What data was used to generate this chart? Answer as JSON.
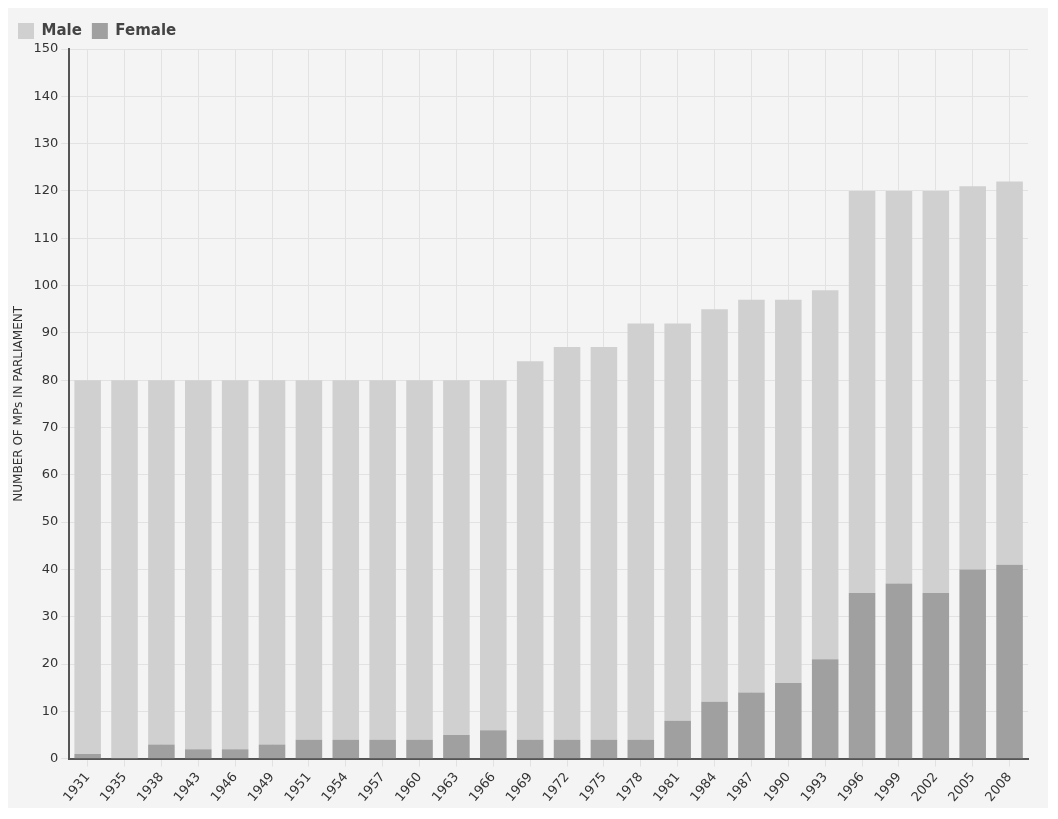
{
  "chart_data": {
    "type": "bar",
    "stacked": true,
    "ylabel": "NUMBER OF MPs IN PARLIAMENT",
    "categories": [
      "1931",
      "1935",
      "1938",
      "1943",
      "1946",
      "1949",
      "1951",
      "1954",
      "1957",
      "1960",
      "1963",
      "1966",
      "1969",
      "1972",
      "1975",
      "1978",
      "1981",
      "1984",
      "1987",
      "1990",
      "1993",
      "1996",
      "1999",
      "2002",
      "2005",
      "2008"
    ],
    "series": [
      {
        "name": "Female",
        "color": "#a0a0a0",
        "values": [
          1,
          0,
          3,
          2,
          2,
          3,
          4,
          4,
          4,
          4,
          5,
          6,
          4,
          4,
          4,
          4,
          8,
          12,
          14,
          16,
          21,
          35,
          37,
          35,
          40,
          41
        ]
      },
      {
        "name": "Male",
        "color": "#d0d0d0",
        "values": [
          79,
          80,
          77,
          78,
          78,
          77,
          76,
          76,
          76,
          76,
          75,
          74,
          80,
          83,
          83,
          88,
          84,
          83,
          83,
          81,
          78,
          85,
          83,
          85,
          81,
          81
        ]
      }
    ],
    "ylim": [
      0,
      150
    ],
    "yticks": [
      0,
      10,
      20,
      30,
      40,
      50,
      60,
      70,
      80,
      90,
      100,
      110,
      120,
      130,
      140,
      150
    ],
    "grid": true,
    "legend": "top left"
  }
}
